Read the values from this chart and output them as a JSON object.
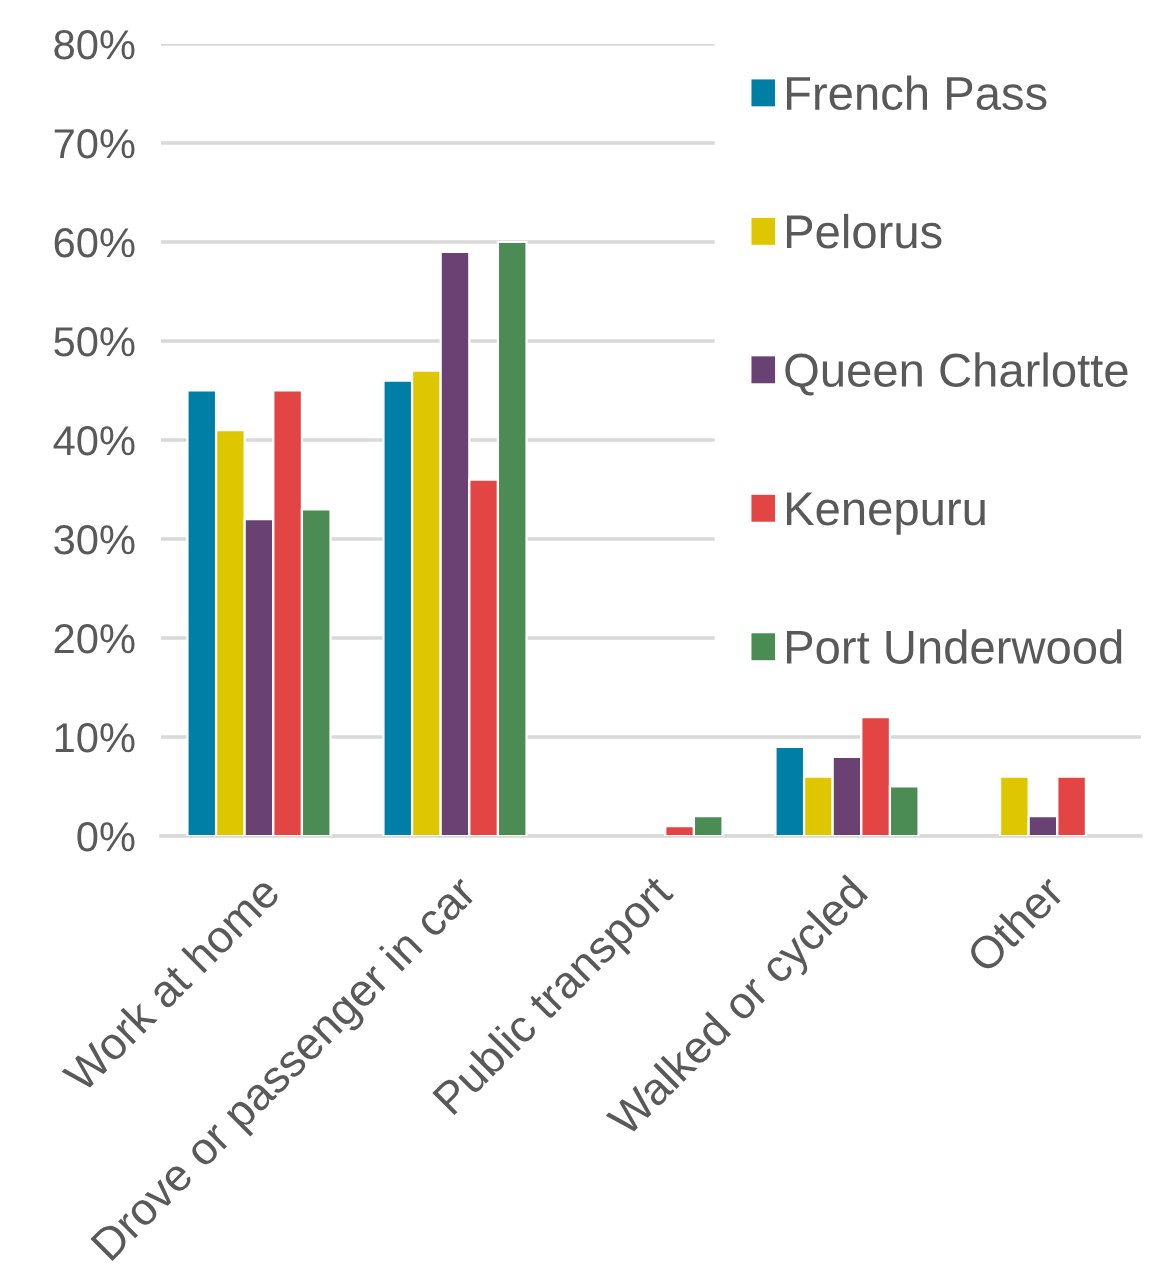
{
  "chart_data": {
    "type": "bar",
    "categories": [
      "Work at home",
      "Drove or passenger in car",
      "Public transport",
      "Walked or cycled",
      "Other"
    ],
    "series": [
      {
        "name": "French Pass",
        "color": "#007fa6",
        "values": [
          45,
          46,
          null,
          9,
          null
        ]
      },
      {
        "name": "Pelorus",
        "color": "#dfc700",
        "values": [
          41,
          47,
          null,
          6,
          6
        ]
      },
      {
        "name": "Queen Charlotte",
        "color": "#6a4173",
        "values": [
          32,
          59,
          null,
          8,
          2
        ]
      },
      {
        "name": "Kenepuru",
        "color": "#e34545",
        "values": [
          45,
          36,
          1,
          12,
          6
        ]
      },
      {
        "name": "Port Underwood",
        "color": "#4a8c54",
        "values": [
          33,
          60,
          2,
          5,
          null
        ]
      }
    ],
    "ylim": [
      0,
      80
    ],
    "yticks": [
      {
        "value": 0,
        "label": "0%"
      },
      {
        "value": 10,
        "label": "10%"
      },
      {
        "value": 20,
        "label": "20%"
      },
      {
        "value": 30,
        "label": "30%"
      },
      {
        "value": 40,
        "label": "40%"
      },
      {
        "value": 50,
        "label": "50%"
      },
      {
        "value": 60,
        "label": "60%"
      },
      {
        "value": 70,
        "label": "70%"
      },
      {
        "value": 80,
        "label": "80%"
      }
    ],
    "grid": "y",
    "legend": "right"
  }
}
